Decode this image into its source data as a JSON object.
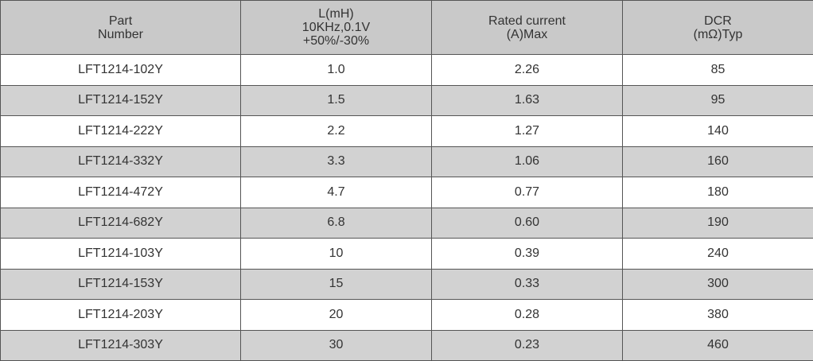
{
  "table": {
    "header": [
      [
        "Part",
        "Number"
      ],
      [
        "L(mH)",
        "10KHz,0.1V",
        "+50%/-30%"
      ],
      [
        "Rated current",
        "(A)Max"
      ],
      [
        "DCR",
        "(mΩ)Typ"
      ]
    ],
    "rows": [
      [
        "LFT1214-102Y",
        "1.0",
        "2.26",
        "85"
      ],
      [
        "LFT1214-152Y",
        "1.5",
        "1.63",
        "95"
      ],
      [
        "LFT1214-222Y",
        "2.2",
        "1.27",
        "140"
      ],
      [
        "LFT1214-332Y",
        "3.3",
        "1.06",
        "160"
      ],
      [
        "LFT1214-472Y",
        "4.7",
        "0.77",
        "180"
      ],
      [
        "LFT1214-682Y",
        "6.8",
        "0.60",
        "190"
      ],
      [
        "LFT1214-103Y",
        "10",
        "0.39",
        "240"
      ],
      [
        "LFT1214-153Y",
        "15",
        "0.33",
        "300"
      ],
      [
        "LFT1214-203Y",
        "20",
        "0.28",
        "380"
      ],
      [
        "LFT1214-303Y",
        "30",
        "0.23",
        "460"
      ]
    ]
  }
}
